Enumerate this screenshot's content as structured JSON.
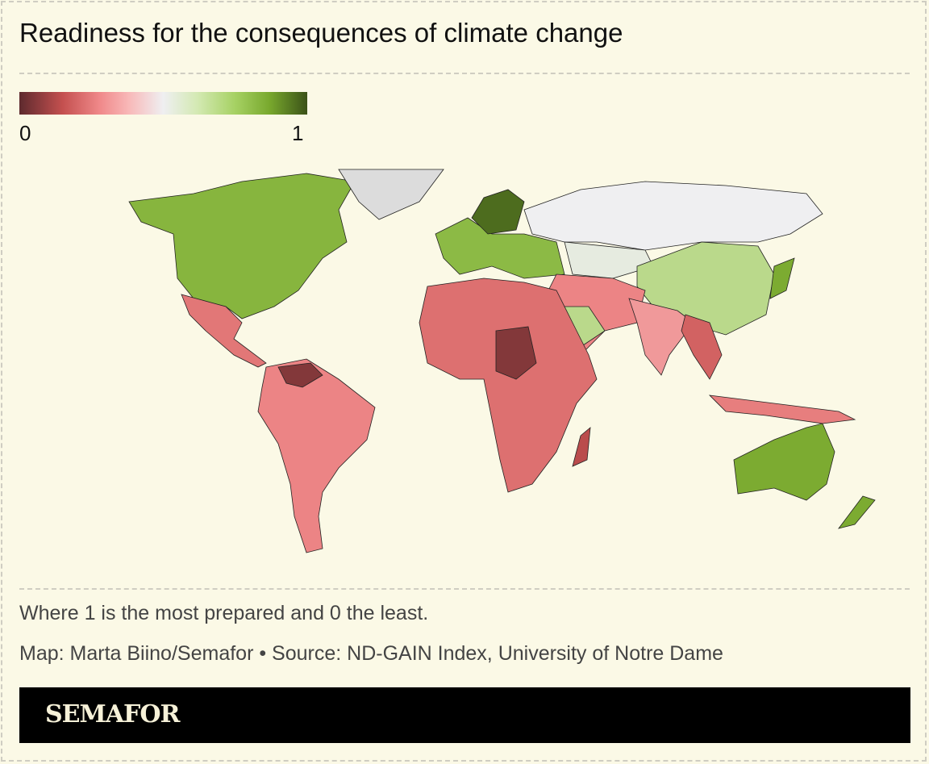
{
  "title": "Readiness for the consequences of climate change",
  "legend": {
    "min_label": "0",
    "max_label": "1",
    "colors": [
      "#5e2a2e",
      "#c4504f",
      "#f0898a",
      "#efeff1",
      "#a6d163",
      "#78a82d",
      "#3b5218"
    ],
    "no_data_color": "#dcdcdc"
  },
  "regions": [
    {
      "name": "United States & Canada",
      "value": 0.78
    },
    {
      "name": "Greenland",
      "value": null
    },
    {
      "name": "Mexico & Central America",
      "value": 0.28
    },
    {
      "name": "South America",
      "value": 0.32
    },
    {
      "name": "Venezuela",
      "value": 0.06
    },
    {
      "name": "Europe",
      "value": 0.76
    },
    {
      "name": "Scandinavia",
      "value": 0.95
    },
    {
      "name": "Russia",
      "value": 0.5
    },
    {
      "name": "Central Asia",
      "value": 0.52
    },
    {
      "name": "China",
      "value": 0.62
    },
    {
      "name": "Japan & Korea",
      "value": 0.82
    },
    {
      "name": "Middle East",
      "value": 0.32
    },
    {
      "name": "Saudi Arabia",
      "value": 0.62
    },
    {
      "name": "India",
      "value": 0.36
    },
    {
      "name": "Southeast Asia",
      "value": 0.22
    },
    {
      "name": "Indonesia & Papua",
      "value": 0.3
    },
    {
      "name": "Africa",
      "value": 0.26
    },
    {
      "name": "Central Africa",
      "value": 0.06
    },
    {
      "name": "Madagascar",
      "value": 0.15
    },
    {
      "name": "Australia",
      "value": 0.82
    },
    {
      "name": "New Zealand",
      "value": 0.82
    }
  ],
  "note": "Where 1 is the most prepared and 0 the least.",
  "source": "Map: Marta Biino/Semafor • Source: ND-GAIN Index, University of Notre Dame",
  "brand": "SEMAFOR"
}
